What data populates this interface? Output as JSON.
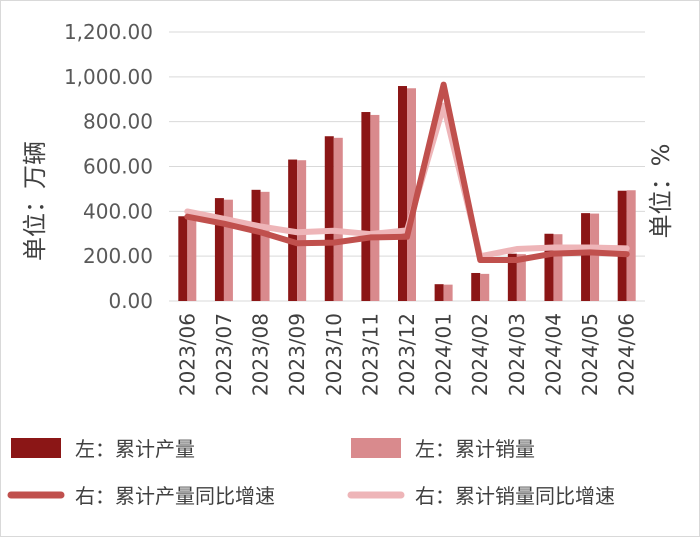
{
  "chart_data": {
    "type": "bar",
    "categories": [
      "2023/06",
      "2023/07",
      "2023/08",
      "2023/09",
      "2023/10",
      "2023/11",
      "2023/12",
      "2024/01",
      "2024/02",
      "2024/03",
      "2024/04",
      "2024/05",
      "2024/06"
    ],
    "ylabel_left": "单位：万辆",
    "ylabel_right": "单位：%",
    "y_left_ticks": [
      "0.00",
      "200.00",
      "400.00",
      "600.00",
      "800.00",
      "1,000.00",
      "1,200.00"
    ],
    "ylim_left": [
      0,
      1200
    ],
    "grid": true,
    "legend_position": "bottom",
    "series": [
      {
        "name": "左：累计产量",
        "type": "bar",
        "axis": "left",
        "color": "#8b1616",
        "values": [
          378,
          459,
          496,
          631,
          735,
          843,
          959,
          75,
          125,
          211,
          300,
          392,
          492
        ]
      },
      {
        "name": "左：累计销量",
        "type": "bar",
        "axis": "left",
        "color": "#d98a8d",
        "values": [
          375,
          452,
          487,
          628,
          728,
          830,
          949,
          73,
          121,
          209,
          298,
          390,
          494
        ]
      },
      {
        "name": "右：累计产量同比增速",
        "type": "line",
        "axis": "right",
        "color": "#c0504d",
        "values": [
          42.4,
          40.1,
          37.3,
          33.7,
          33.9,
          35.6,
          35.8,
          85.7,
          28.2,
          28.2,
          30.3,
          30.7,
          30.1
        ]
      },
      {
        "name": "右：累计销量同比增速",
        "type": "line",
        "axis": "right",
        "color": "#eeb5b8",
        "values": [
          44.1,
          41.7,
          39.2,
          37.3,
          37.8,
          36.7,
          37.9,
          78.8,
          29.4,
          31.8,
          32.3,
          32.3,
          32.0
        ]
      }
    ]
  }
}
